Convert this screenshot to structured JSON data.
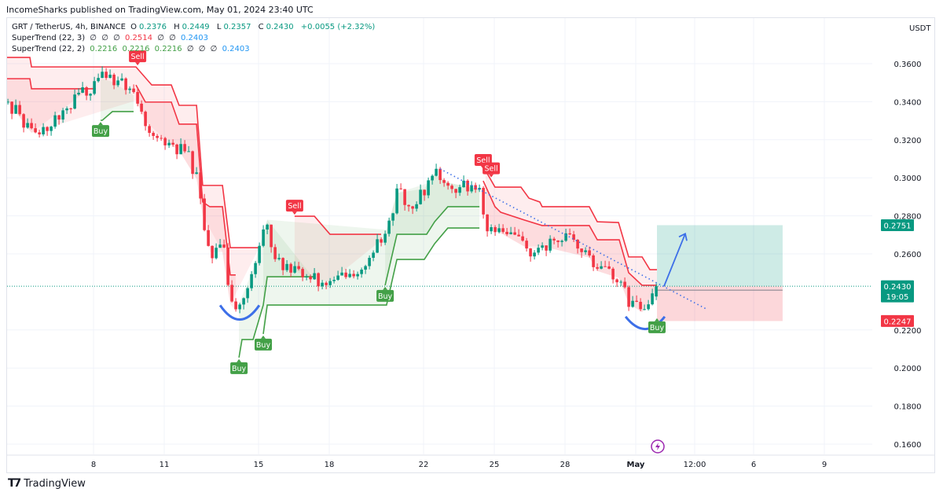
{
  "publisher": "IncomeSharks published on TradingView.com, May 01, 2024 23:40 UTC",
  "legend": {
    "symbol": "GRT / TetherUS, 4h, BINANCE",
    "o_label": "O",
    "o": "0.2376",
    "h_label": "H",
    "h": "0.2449",
    "l_label": "L",
    "l": "0.2357",
    "c_label": "C",
    "c": "0.2430",
    "change": "+0.0055 (+2.32%)",
    "st1_name": "SuperTrend (22, 3)",
    "st1_values": [
      "∅",
      "∅",
      "∅",
      "0.2514",
      "∅",
      "∅",
      "0.2403"
    ],
    "st2_name": "SuperTrend (22, 2)",
    "st2_values": [
      "0.2216",
      "0.2216",
      "0.2216",
      "∅",
      "∅",
      "∅",
      "0.2403"
    ]
  },
  "currency": "USDT",
  "branding": "TradingView",
  "colors": {
    "up": "#089981",
    "down": "#f23645",
    "st_up": "#43a047",
    "st_down": "#f23645",
    "drawing": "#3d6fe8",
    "grid": "#f0f3fa"
  },
  "chart_data": {
    "type": "candlestick",
    "title": "GRT / TetherUS, 4h, BINANCE",
    "time_unit": "days since Apr 8 2024",
    "ylim": [
      0.155,
      0.37
    ],
    "xlim": [
      -3.7,
      33.0
    ],
    "y_ticks": [
      "0.3600",
      "0.3400",
      "0.3200",
      "0.3000",
      "0.2800",
      "0.2600",
      "0.2200",
      "0.2000",
      "0.1800",
      "0.1600"
    ],
    "x_ticks": [
      {
        "t": 0,
        "label": "8"
      },
      {
        "t": 3,
        "label": "11"
      },
      {
        "t": 7,
        "label": "15"
      },
      {
        "t": 10,
        "label": "18"
      },
      {
        "t": 14,
        "label": "22"
      },
      {
        "t": 17,
        "label": "25"
      },
      {
        "t": 20,
        "label": "28"
      },
      {
        "t": 23,
        "label": "May"
      },
      {
        "t": 25.5,
        "label": "12:00"
      },
      {
        "t": 28,
        "label": "6"
      },
      {
        "t": 31,
        "label": "9"
      }
    ],
    "close_path": [
      [
        -3.63,
        0.34
      ],
      [
        -2.47,
        0.321
      ],
      [
        -1.3,
        0.336
      ],
      [
        0.37,
        0.352
      ],
      [
        1.53,
        0.348
      ],
      [
        2.37,
        0.325
      ],
      [
        4.03,
        0.311
      ],
      [
        4.53,
        0.294
      ],
      [
        4.77,
        0.261
      ],
      [
        5.53,
        0.261
      ],
      [
        5.77,
        0.234
      ],
      [
        6.03,
        0.23
      ],
      [
        6.7,
        0.249
      ],
      [
        7.37,
        0.278
      ],
      [
        7.7,
        0.257
      ],
      [
        8.53,
        0.251
      ],
      [
        9.7,
        0.245
      ],
      [
        11.03,
        0.247
      ],
      [
        12.37,
        0.27
      ],
      [
        12.87,
        0.292
      ],
      [
        13.7,
        0.286
      ],
      [
        14.37,
        0.303
      ],
      [
        15.2,
        0.296
      ],
      [
        16.37,
        0.294
      ],
      [
        16.63,
        0.276
      ],
      [
        17.37,
        0.27
      ],
      [
        18.7,
        0.261
      ],
      [
        19.7,
        0.27
      ],
      [
        20.7,
        0.265
      ],
      [
        21.37,
        0.251
      ],
      [
        22.37,
        0.247
      ],
      [
        22.7,
        0.234
      ],
      [
        23.43,
        0.228
      ],
      [
        23.9,
        0.243
      ]
    ],
    "supertrend": [
      {
        "name": "ST(22,3) down 1",
        "trend": "down",
        "points": [
          [
            -3.7,
            0.3633
          ],
          [
            -2.7,
            0.3633
          ],
          [
            -2.63,
            0.3583
          ],
          [
            1.8,
            0.3583
          ],
          [
            2.47,
            0.3488
          ],
          [
            3.3,
            0.3488
          ],
          [
            3.63,
            0.3381
          ],
          [
            4.37,
            0.3381
          ],
          [
            4.63,
            0.296
          ],
          [
            5.47,
            0.296
          ],
          [
            5.8,
            0.2633
          ],
          [
            7.03,
            0.2633
          ]
        ]
      },
      {
        "name": "ST(22,2) down 1",
        "trend": "down",
        "points": [
          [
            -3.7,
            0.3521
          ],
          [
            -2.7,
            0.3521
          ],
          [
            -2.63,
            0.3468
          ],
          [
            0.1,
            0.3468
          ]
        ]
      },
      {
        "name": "ST(22,2) down 2",
        "trend": "down",
        "points": [
          [
            1.8,
            0.3488
          ],
          [
            2.2,
            0.3398
          ],
          [
            3.3,
            0.3398
          ],
          [
            3.63,
            0.3282
          ],
          [
            4.37,
            0.3282
          ],
          [
            4.63,
            0.2873
          ],
          [
            4.93,
            0.2848
          ],
          [
            5.47,
            0.2848
          ],
          [
            5.8,
            0.2489
          ],
          [
            6.03,
            0.2489
          ]
        ]
      },
      {
        "name": "ST(22,3) down 2",
        "trend": "down",
        "points": [
          [
            8.53,
            0.2798
          ],
          [
            9.37,
            0.2798
          ],
          [
            10.03,
            0.2703
          ],
          [
            12.2,
            0.2703
          ]
        ]
      },
      {
        "name": "ST(22,3) down 3",
        "trend": "down",
        "points": [
          [
            16.63,
            0.3038
          ],
          [
            17.03,
            0.2951
          ],
          [
            18.13,
            0.2951
          ],
          [
            18.47,
            0.2893
          ],
          [
            18.93,
            0.2873
          ],
          [
            19.03,
            0.2848
          ],
          [
            21.03,
            0.2848
          ],
          [
            21.37,
            0.2769
          ],
          [
            22.27,
            0.2765
          ],
          [
            22.7,
            0.2584
          ],
          [
            23.27,
            0.2584
          ],
          [
            23.6,
            0.2517
          ],
          [
            23.9,
            0.2517
          ]
        ]
      },
      {
        "name": "ST(22,2) down 3",
        "trend": "down",
        "points": [
          [
            16.53,
            0.2984
          ],
          [
            17.03,
            0.2848
          ],
          [
            17.27,
            0.2819
          ],
          [
            18.27,
            0.2778
          ],
          [
            19.03,
            0.2749
          ],
          [
            21.03,
            0.2749
          ],
          [
            21.37,
            0.2674
          ],
          [
            22.3,
            0.2674
          ],
          [
            22.7,
            0.2501
          ],
          [
            23.27,
            0.2435
          ],
          [
            23.9,
            0.2435
          ]
        ]
      },
      {
        "name": "ST(22,2) up 1",
        "trend": "up",
        "points": [
          [
            0.3,
            0.3302
          ],
          [
            0.37,
            0.3302
          ],
          [
            0.8,
            0.3348
          ],
          [
            1.7,
            0.3348
          ]
        ]
      },
      {
        "name": "ST(22,2) up 2",
        "trend": "up",
        "points": [
          [
            6.17,
            0.2055
          ],
          [
            6.3,
            0.215
          ],
          [
            6.77,
            0.215
          ],
          [
            7.2,
            0.2331
          ],
          [
            7.37,
            0.248
          ],
          [
            9.37,
            0.248
          ]
        ]
      },
      {
        "name": "ST(22,3) up 2",
        "trend": "up",
        "points": [
          [
            7.2,
            0.2179
          ],
          [
            7.37,
            0.2331
          ],
          [
            12.43,
            0.2331
          ],
          [
            12.87,
            0.2571
          ],
          [
            14.03,
            0.2571
          ],
          [
            14.47,
            0.2654
          ],
          [
            15.03,
            0.2736
          ],
          [
            16.37,
            0.2736
          ]
        ]
      },
      {
        "name": "ST(22,2) up 3",
        "trend": "up",
        "points": [
          [
            12.37,
            0.2435
          ],
          [
            12.87,
            0.2703
          ],
          [
            14.13,
            0.2703
          ],
          [
            14.47,
            0.2769
          ],
          [
            15.03,
            0.2848
          ],
          [
            16.37,
            0.2848
          ]
        ]
      }
    ],
    "signals": [
      {
        "type": "Buy",
        "t": 0.3,
        "price": 0.3302
      },
      {
        "type": "Sell",
        "t": 1.87,
        "price": 0.3583
      },
      {
        "type": "Buy",
        "t": 6.17,
        "price": 0.2055
      },
      {
        "type": "Buy",
        "t": 7.2,
        "price": 0.2179
      },
      {
        "type": "Sell",
        "t": 8.53,
        "price": 0.2798
      },
      {
        "type": "Buy",
        "t": 12.37,
        "price": 0.2435
      },
      {
        "type": "Sell",
        "t": 16.53,
        "price": 0.3038
      },
      {
        "type": "Sell",
        "t": 16.87,
        "price": 0.2994
      },
      {
        "type": "Buy",
        "t": 23.9,
        "price": 0.227
      }
    ],
    "long_position": {
      "t_start": 23.9,
      "t_end": 29.23,
      "target": 0.2751,
      "entry": 0.243,
      "stop": 0.2247,
      "target_label": "0.2751",
      "entry_label": "0.2430",
      "countdown": "19:05",
      "stop_label": "0.2247"
    },
    "trendline": [
      [
        14.7,
        0.3047
      ],
      [
        25.97,
        0.2312
      ]
    ],
    "arrow": [
      [
        24.2,
        0.243
      ],
      [
        25.1,
        0.2706
      ]
    ],
    "arcs": [
      {
        "t0": 5.37,
        "t1": 7.03,
        "price_top": 0.233,
        "price_bottom": 0.2255
      },
      {
        "t0": 22.57,
        "t1": 24.23,
        "price_top": 0.227,
        "price_bottom": 0.2205
      }
    ]
  }
}
